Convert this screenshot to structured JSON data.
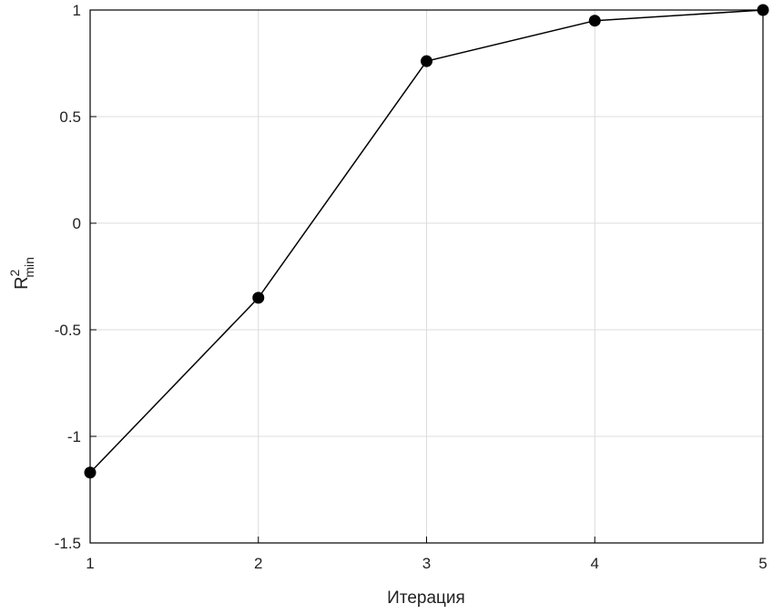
{
  "chart_data": {
    "type": "line",
    "xlabel": "Итерация",
    "ylabel": {
      "text": "R",
      "superscript": "2",
      "subscript": "min"
    },
    "x": [
      1,
      2,
      3,
      4,
      5
    ],
    "series": [
      {
        "color": "#000000",
        "values": [
          -1.17,
          -0.35,
          0.76,
          0.95,
          1.0
        ]
      }
    ],
    "xlim": [
      1,
      5
    ],
    "xticks": [
      1,
      2,
      3,
      4,
      5
    ],
    "ylim": [
      -1.5,
      1
    ],
    "yticks": [
      -1.5,
      -1,
      -0.5,
      0,
      0.5,
      1
    ],
    "grid": true,
    "marker": "circle"
  }
}
